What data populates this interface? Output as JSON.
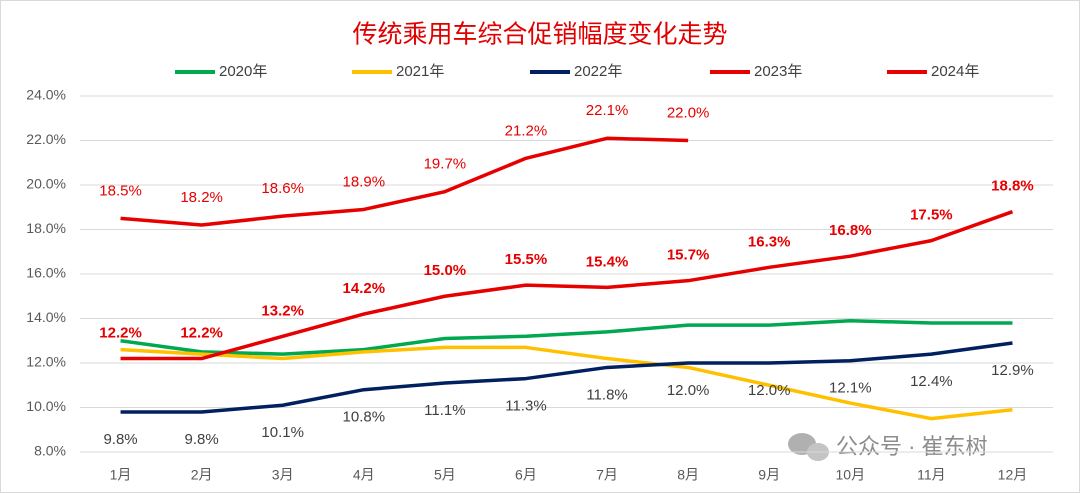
{
  "chart_data": {
    "type": "line",
    "title": "传统乘用车综合促销幅度变化走势",
    "categories": [
      "1月",
      "2月",
      "3月",
      "4月",
      "5月",
      "6月",
      "7月",
      "8月",
      "9月",
      "10月",
      "11月",
      "12月"
    ],
    "series": [
      {
        "name": "2020年",
        "color": "#00a84f",
        "values": [
          13.0,
          12.5,
          12.4,
          12.6,
          13.1,
          13.2,
          13.4,
          13.7,
          13.7,
          13.9,
          13.8,
          13.8
        ]
      },
      {
        "name": "2021年",
        "color": "#ffc000",
        "values": [
          12.6,
          12.4,
          12.2,
          12.5,
          12.7,
          12.7,
          12.2,
          11.8,
          11.0,
          10.2,
          9.5,
          9.9
        ]
      },
      {
        "name": "2022年",
        "color": "#002060",
        "values": [
          9.8,
          9.8,
          10.1,
          10.8,
          11.1,
          11.3,
          11.8,
          12.0,
          12.0,
          12.1,
          12.4,
          12.9
        ],
        "value_labels": [
          "9.8%",
          "9.8%",
          "10.1%",
          "10.8%",
          "11.1%",
          "11.3%",
          "11.8%",
          "12.0%",
          "12.0%",
          "12.1%",
          "12.4%",
          "12.9%"
        ]
      },
      {
        "name": "2023年",
        "color": "#e60000",
        "values": [
          12.2,
          12.2,
          13.2,
          14.2,
          15.0,
          15.5,
          15.4,
          15.7,
          16.3,
          16.8,
          17.5,
          18.8
        ],
        "value_labels": [
          "12.2%",
          "12.2%",
          "13.2%",
          "14.2%",
          "15.0%",
          "15.5%",
          "15.4%",
          "15.7%",
          "16.3%",
          "16.8%",
          "17.5%",
          "18.8%"
        ]
      },
      {
        "name": "2024年",
        "color": "#e60000",
        "values": [
          18.5,
          18.2,
          18.6,
          18.9,
          19.7,
          21.2,
          22.1,
          22.0,
          null,
          null,
          null,
          null
        ],
        "value_labels": [
          "18.5%",
          "18.2%",
          "18.6%",
          "18.9%",
          "19.7%",
          "21.2%",
          "22.1%",
          "22.0%",
          null,
          null,
          null,
          null
        ]
      }
    ],
    "ylim": [
      8,
      24
    ],
    "yticks": [
      {
        "value": 8,
        "label": "8.0%"
      },
      {
        "value": 10,
        "label": "10.0%"
      },
      {
        "value": 12,
        "label": "12.0%"
      },
      {
        "value": 14,
        "label": "14.0%"
      },
      {
        "value": 16,
        "label": "16.0%"
      },
      {
        "value": 18,
        "label": "18.0%"
      },
      {
        "value": 20,
        "label": "20.0%"
      },
      {
        "value": 22,
        "label": "22.0%"
      },
      {
        "value": 24,
        "label": "24.0%"
      }
    ],
    "grid": true,
    "legend": "top",
    "watermark": "公众号 · 崔东树"
  }
}
